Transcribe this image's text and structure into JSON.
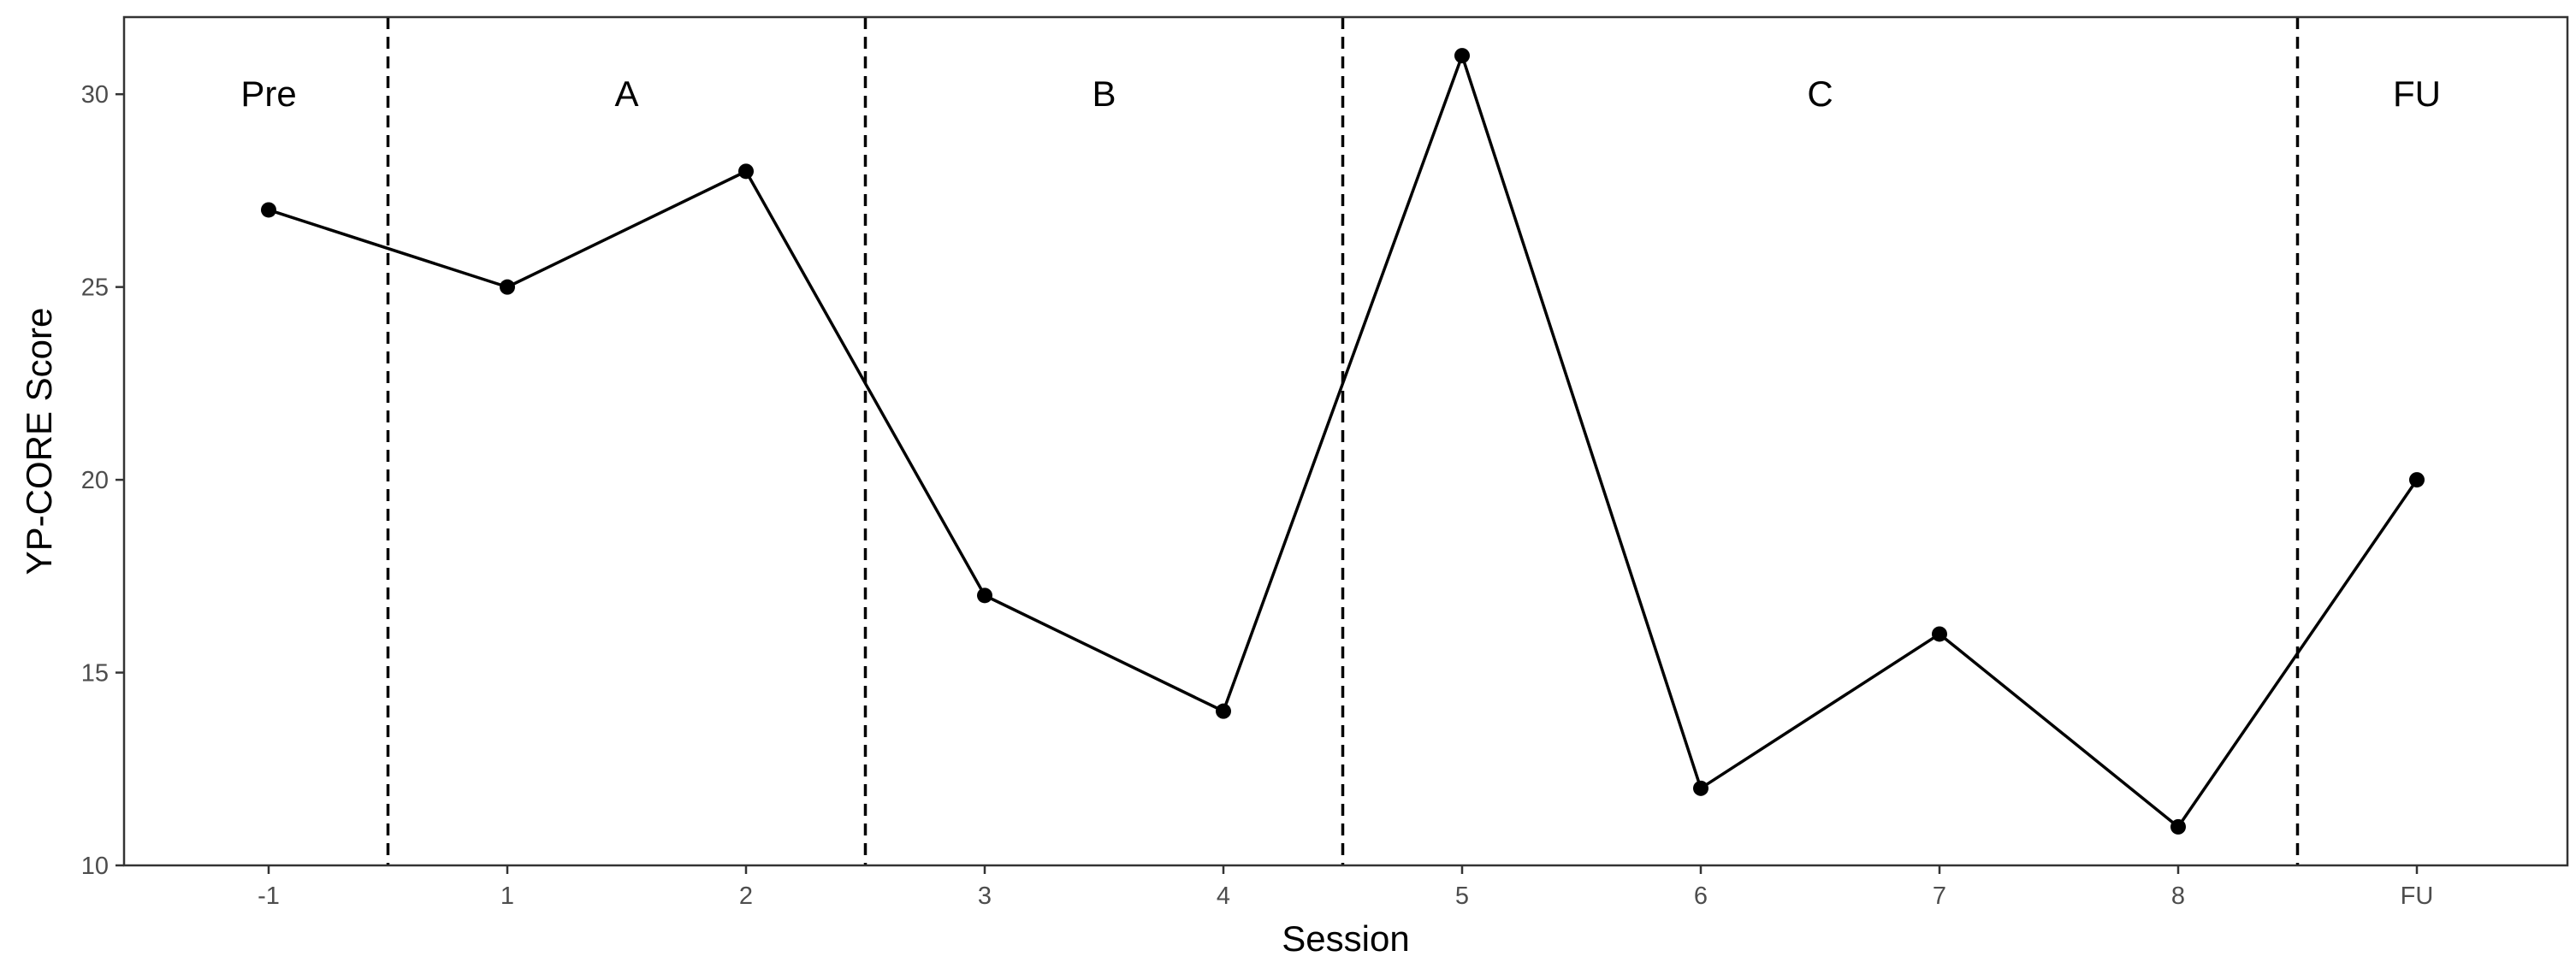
{
  "chart_data": {
    "type": "line",
    "title": "",
    "xlabel": "Session",
    "ylabel": "YP-CORE Score",
    "categories": [
      "-1",
      "1",
      "2",
      "3",
      "4",
      "5",
      "6",
      "7",
      "8",
      "FU"
    ],
    "series": [
      {
        "values": [
          27,
          25,
          28,
          17,
          14,
          31,
          12,
          16,
          11,
          20
        ]
      }
    ],
    "ylim": [
      10,
      32
    ],
    "yticks": [
      10,
      15,
      20,
      25,
      30
    ],
    "phases": [
      {
        "label": "Pre",
        "start": 0,
        "end": 0
      },
      {
        "label": "A",
        "start": 1,
        "end": 2
      },
      {
        "label": "B",
        "start": 3,
        "end": 4
      },
      {
        "label": "C",
        "start": 5,
        "end": 8
      },
      {
        "label": "FU",
        "start": 9,
        "end": 9
      }
    ],
    "phase_boundaries_between_index": [
      0,
      2,
      4,
      8
    ],
    "phase_label_y": 30,
    "grid": false,
    "legend": "none",
    "line_color": "#000000",
    "boundary_style": "dashed"
  }
}
